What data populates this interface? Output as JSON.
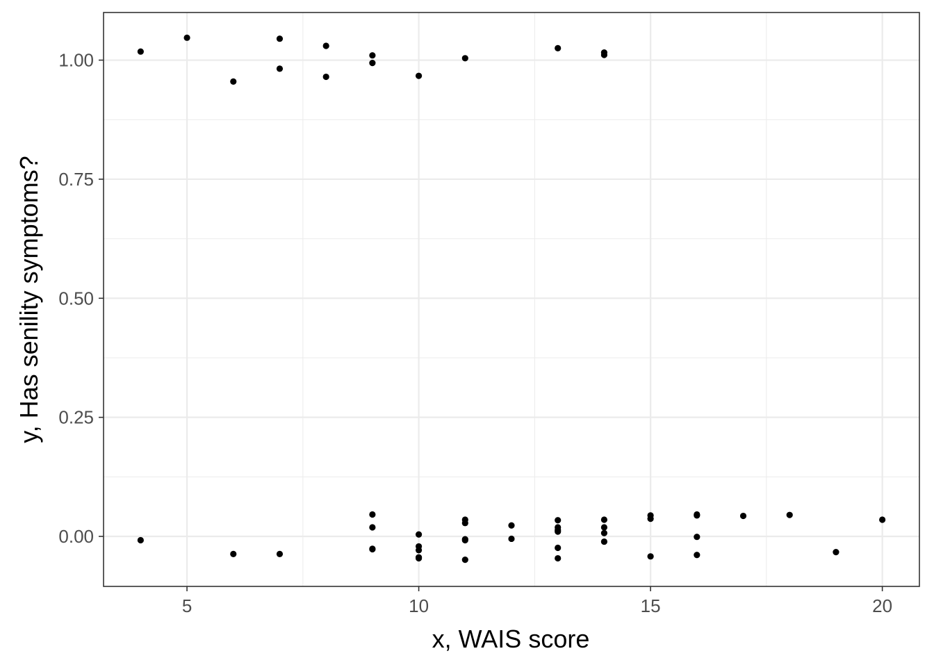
{
  "chart_data": {
    "type": "scatter",
    "title": "",
    "xlabel": "x, WAIS score",
    "ylabel": "y, Has senility symptoms?",
    "xlim": [
      3.2,
      20.8
    ],
    "ylim": [
      -0.105,
      1.1
    ],
    "x_ticks": [
      5,
      10,
      15,
      20
    ],
    "x_tick_labels": [
      "5",
      "10",
      "15",
      "20"
    ],
    "y_ticks": [
      0,
      0.25,
      0.5,
      0.75,
      1.0
    ],
    "y_tick_labels": [
      "0.00",
      "0.25",
      "0.50",
      "0.75",
      "1.00"
    ],
    "grid": true,
    "point_color": "#000000",
    "points": [
      {
        "x": 4,
        "y": 1.018
      },
      {
        "x": 5,
        "y": 1.047
      },
      {
        "x": 6,
        "y": 0.955
      },
      {
        "x": 7,
        "y": 1.045
      },
      {
        "x": 7,
        "y": 0.982
      },
      {
        "x": 8,
        "y": 1.03
      },
      {
        "x": 8,
        "y": 0.965
      },
      {
        "x": 9,
        "y": 1.01
      },
      {
        "x": 9,
        "y": 0.994
      },
      {
        "x": 10,
        "y": 0.967
      },
      {
        "x": 11,
        "y": 1.004
      },
      {
        "x": 13,
        "y": 1.025
      },
      {
        "x": 14,
        "y": 1.016
      },
      {
        "x": 14,
        "y": 1.011
      },
      {
        "x": 4,
        "y": -0.008
      },
      {
        "x": 6,
        "y": -0.037
      },
      {
        "x": 7,
        "y": -0.037
      },
      {
        "x": 9,
        "y": 0.046
      },
      {
        "x": 9,
        "y": 0.019
      },
      {
        "x": 9,
        "y": -0.026
      },
      {
        "x": 9,
        "y": -0.027
      },
      {
        "x": 10,
        "y": 0.004
      },
      {
        "x": 10,
        "y": -0.021
      },
      {
        "x": 10,
        "y": -0.029
      },
      {
        "x": 10,
        "y": -0.044
      },
      {
        "x": 10,
        "y": -0.046
      },
      {
        "x": 11,
        "y": 0.035
      },
      {
        "x": 11,
        "y": 0.028
      },
      {
        "x": 11,
        "y": -0.006
      },
      {
        "x": 11,
        "y": -0.008
      },
      {
        "x": 11,
        "y": -0.049
      },
      {
        "x": 12,
        "y": 0.023
      },
      {
        "x": 12,
        "y": -0.005
      },
      {
        "x": 13,
        "y": 0.034
      },
      {
        "x": 13,
        "y": 0.019
      },
      {
        "x": 13,
        "y": 0.013
      },
      {
        "x": 13,
        "y": 0.01
      },
      {
        "x": 13,
        "y": -0.024
      },
      {
        "x": 13,
        "y": -0.046
      },
      {
        "x": 14,
        "y": 0.035
      },
      {
        "x": 14,
        "y": 0.019
      },
      {
        "x": 14,
        "y": 0.007
      },
      {
        "x": 14,
        "y": -0.011
      },
      {
        "x": 15,
        "y": 0.044
      },
      {
        "x": 15,
        "y": 0.037
      },
      {
        "x": 15,
        "y": -0.042
      },
      {
        "x": 16,
        "y": 0.046
      },
      {
        "x": 16,
        "y": 0.044
      },
      {
        "x": 16,
        "y": -0.001
      },
      {
        "x": 16,
        "y": -0.039
      },
      {
        "x": 17,
        "y": 0.043
      },
      {
        "x": 18,
        "y": 0.045
      },
      {
        "x": 19,
        "y": -0.033
      },
      {
        "x": 20,
        "y": 0.035
      }
    ]
  }
}
